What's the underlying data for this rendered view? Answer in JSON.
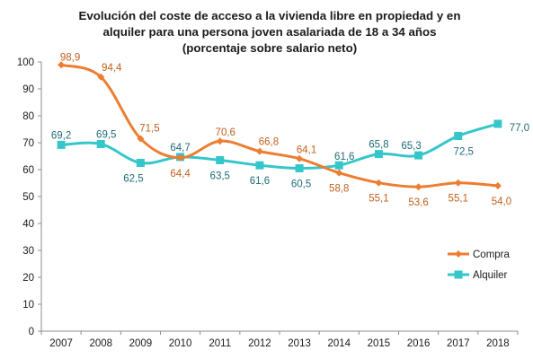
{
  "chart_data": {
    "type": "line",
    "title_lines": [
      "Evolución del coste de acceso a la vivienda libre en propiedad y en",
      "alquiler para una persona joven asalariada de 18 a 34 años",
      "(porcentaje sobre salario neto)"
    ],
    "categories": [
      "2007",
      "2008",
      "2009",
      "2010",
      "2011",
      "2012",
      "2013",
      "2014",
      "2015",
      "2016",
      "2017",
      "2018"
    ],
    "ylim": [
      0,
      100
    ],
    "yticks": [
      "0",
      "10",
      "20",
      "30",
      "40",
      "50",
      "60",
      "70",
      "80",
      "90",
      "100"
    ],
    "grid": false,
    "legend_position": "right",
    "series": [
      {
        "name": "Compra",
        "color": "#ED7D31",
        "label_color": "#C0601E",
        "marker": "diamond",
        "values": [
          98.9,
          94.4,
          71.5,
          64.4,
          70.6,
          66.8,
          64.1,
          58.8,
          55.1,
          53.6,
          55.1,
          54.0
        ],
        "labels": [
          "98,9",
          "94,4",
          "71,5",
          "64,4",
          "70,6",
          "66,8",
          "64,1",
          "58,8",
          "55,1",
          "53,6",
          "55,1",
          "54,0"
        ]
      },
      {
        "name": "Alquiler",
        "color": "#35C6CB",
        "label_color": "#1F6B77",
        "marker": "square",
        "values": [
          69.2,
          69.5,
          62.5,
          64.7,
          63.5,
          61.6,
          60.5,
          61.6,
          65.8,
          65.3,
          72.5,
          77.0
        ],
        "labels": [
          "69,2",
          "69,5",
          "62,5",
          "64,7",
          "63,5",
          "61,6",
          "60,5",
          "61,6",
          "65,8",
          "65,3",
          "72,5",
          "77,0"
        ]
      }
    ]
  }
}
